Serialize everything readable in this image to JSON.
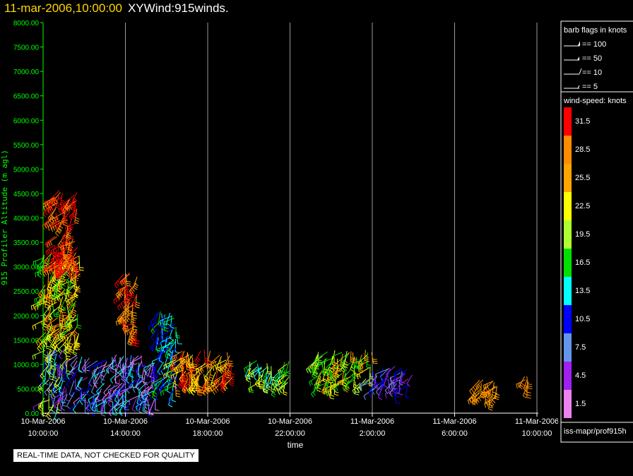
{
  "header": {
    "timestamp": "11-mar-2006,10:00:00",
    "product": "XYWind:915winds."
  },
  "footer": {
    "qc_note": "REAL-TIME DATA, NOT CHECKED FOR QUALITY",
    "source_path": "iss-mapr/prof915h"
  },
  "chart_data": {
    "type": "scatter",
    "subtype": "wind-barb time-height",
    "xlabel": "time",
    "ylabel": "915 Profiler Altitude (m agl)",
    "ylim": [
      0,
      8000
    ],
    "yticks": [
      "0.00",
      "500.00",
      "1000.00",
      "1500.00",
      "2000.00",
      "2500.00",
      "3000.00",
      "3500.00",
      "4000.00",
      "4500.00",
      "5000.00",
      "5500.00",
      "6000.00",
      "6500.00",
      "7000.00",
      "7500.00",
      "8000.00"
    ],
    "xticks": [
      {
        "date": "10-Mar-2006",
        "time": "10:00:00"
      },
      {
        "date": "10-Mar-2006",
        "time": "14:00:00"
      },
      {
        "date": "10-Mar-2006",
        "time": "18:00:00"
      },
      {
        "date": "10-Mar-2006",
        "time": "22:00:00"
      },
      {
        "date": "11-Mar-2006",
        "time": "2:00:00"
      },
      {
        "date": "11-Mar-2006",
        "time": "6:00:00"
      },
      {
        "date": "11-Mar-2006",
        "time": "10:00:00"
      }
    ],
    "grid": "vertical",
    "barb_legend": {
      "title": "barb flags in knots",
      "items": [
        "== 100",
        "== 50",
        "== 10",
        "== 5"
      ]
    },
    "colorbar": {
      "title": "wind-speed: knots",
      "labels": [
        "31.5",
        "28.5",
        "25.5",
        "22.5",
        "19.5",
        "16.5",
        "13.5",
        "10.5",
        "7.5",
        "4.5",
        "1.5"
      ],
      "colors": [
        "#ff0000",
        "#ff8c00",
        "#ffa500",
        "#ffff00",
        "#adff2f",
        "#00e000",
        "#00ffff",
        "#0000ff",
        "#6495ed",
        "#a020f0",
        "#ee82ee"
      ]
    },
    "clusters": [
      {
        "t": [
          0.0,
          1.2
        ],
        "z": [
          100,
          1400
        ],
        "speeds": [
          4.5,
          7.5,
          10.5,
          13.5,
          19.5,
          22.5
        ]
      },
      {
        "t": [
          0.0,
          1.8
        ],
        "z": [
          1400,
          3300
        ],
        "speeds": [
          16.5,
          19.5,
          22.5,
          25.5,
          28.5
        ]
      },
      {
        "t": [
          0.4,
          1.7
        ],
        "z": [
          3000,
          4600
        ],
        "speeds": [
          28.5,
          31.5
        ]
      },
      {
        "t": [
          1.5,
          5.5
        ],
        "z": [
          200,
          1200
        ],
        "speeds": [
          1.5,
          4.5,
          7.5,
          10.5,
          13.5
        ]
      },
      {
        "t": [
          3.9,
          4.6
        ],
        "z": [
          1600,
          2900
        ],
        "speeds": [
          25.5,
          28.5,
          31.5
        ]
      },
      {
        "t": [
          5.5,
          6.5
        ],
        "z": [
          400,
          2100
        ],
        "speeds": [
          10.5,
          13.5,
          16.5
        ]
      },
      {
        "t": [
          6.3,
          9.2
        ],
        "z": [
          600,
          1300
        ],
        "speeds": [
          22.5,
          25.5,
          28.5,
          31.5
        ]
      },
      {
        "t": [
          10.0,
          12.0
        ],
        "z": [
          600,
          1100
        ],
        "speeds": [
          13.5,
          16.5,
          19.5,
          22.5
        ]
      },
      {
        "t": [
          13.2,
          16.0
        ],
        "z": [
          600,
          1300
        ],
        "speeds": [
          16.5,
          19.5,
          22.5,
          25.5
        ]
      },
      {
        "t": [
          16.0,
          18.0
        ],
        "z": [
          500,
          1000
        ],
        "speeds": [
          4.5,
          7.5,
          10.5
        ]
      },
      {
        "t": [
          21.0,
          22.2
        ],
        "z": [
          300,
          700
        ],
        "speeds": [
          25.5,
          28.5
        ]
      },
      {
        "t": [
          23.4,
          23.6
        ],
        "z": [
          500,
          800
        ],
        "speeds": [
          28.5
        ]
      }
    ]
  }
}
